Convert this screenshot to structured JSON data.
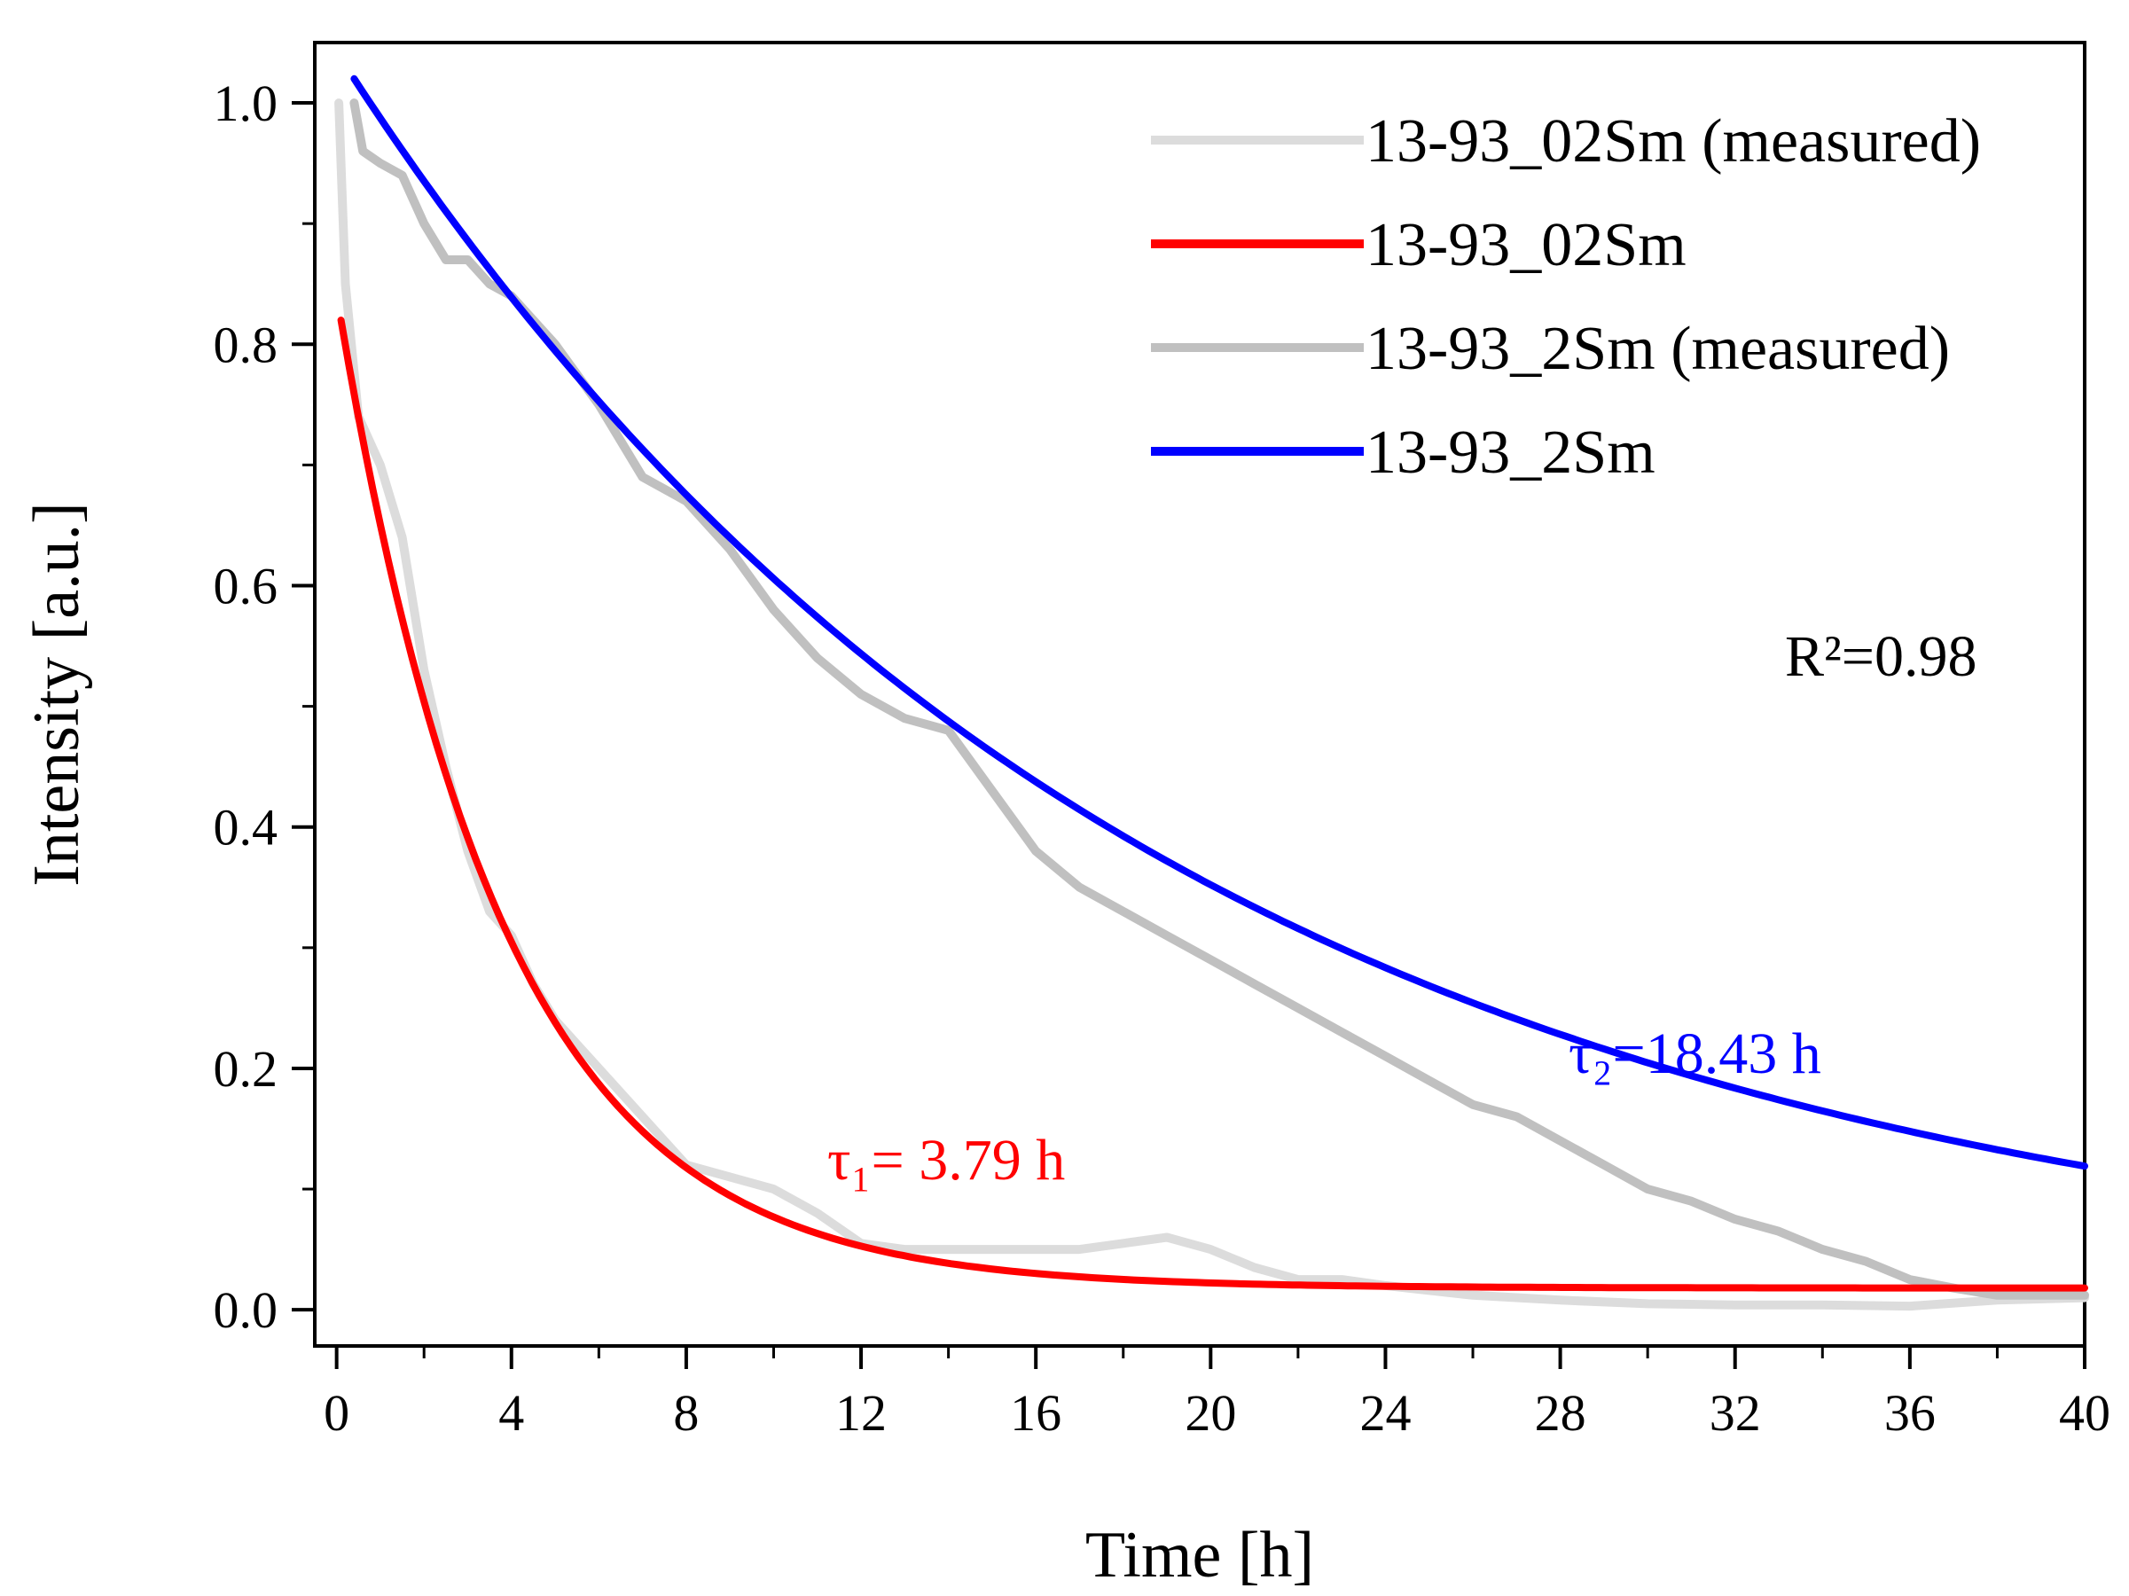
{
  "chart_data": {
    "type": "line",
    "title": "",
    "xlabel": "Time [h]",
    "ylabel": "Intensity [a.u.]",
    "xlim": [
      -0.5,
      40
    ],
    "ylim": [
      -0.03,
      1.05
    ],
    "x_ticks": [
      0,
      4,
      8,
      12,
      16,
      20,
      24,
      28,
      32,
      36,
      40
    ],
    "x_tick_labels": [
      "0",
      "4",
      "8",
      "12",
      "16",
      "20",
      "24",
      "28",
      "32",
      "36",
      "40"
    ],
    "y_ticks": [
      0.0,
      0.2,
      0.4,
      0.6,
      0.8,
      1.0
    ],
    "y_tick_labels": [
      "0.0",
      "0.2",
      "0.4",
      "0.6",
      "0.8",
      "1.0"
    ],
    "grid": false,
    "legend_position": "top-right",
    "series": [
      {
        "name": "13-93_02Sm (measured)",
        "color": "#dcdcdc",
        "kind": "measured",
        "x": [
          0.05,
          0.2,
          0.5,
          1,
          1.5,
          2,
          2.5,
          3,
          3.5,
          4,
          4.5,
          5,
          5.5,
          6,
          7,
          8,
          9,
          10,
          11,
          12,
          13,
          14,
          15,
          16,
          17,
          18,
          19,
          20,
          21,
          22,
          23,
          24,
          26,
          28,
          30,
          32,
          34,
          36,
          38,
          40
        ],
        "y": [
          1.0,
          0.85,
          0.74,
          0.7,
          0.64,
          0.53,
          0.45,
          0.38,
          0.33,
          0.31,
          0.27,
          0.24,
          0.22,
          0.2,
          0.16,
          0.12,
          0.11,
          0.1,
          0.08,
          0.055,
          0.05,
          0.05,
          0.05,
          0.05,
          0.05,
          0.055,
          0.06,
          0.05,
          0.035,
          0.025,
          0.025,
          0.02,
          0.012,
          0.008,
          0.005,
          0.004,
          0.004,
          0.003,
          0.008,
          0.01
        ]
      },
      {
        "name": "13-93_02Sm",
        "color": "#ff0000",
        "kind": "fit",
        "model": {
          "type": "exp",
          "x0": 0.1,
          "y0": 0.82,
          "offset": 0.018,
          "tau": 3.79,
          "x_start": 0.1,
          "x_end": 40
        }
      },
      {
        "name": "13-93_2Sm (measured)",
        "color": "#c0c0c0",
        "kind": "measured",
        "x": [
          0.4,
          0.6,
          1,
          1.5,
          2,
          2.5,
          3,
          3.5,
          4,
          5,
          6,
          7,
          8,
          9,
          10,
          11,
          12,
          13,
          14,
          15,
          16,
          17,
          18,
          19,
          20,
          21,
          22,
          23,
          24,
          25,
          26,
          27,
          28,
          29,
          30,
          31,
          32,
          33,
          34,
          35,
          36,
          37,
          38,
          39,
          40
        ],
        "y": [
          1.0,
          0.96,
          0.95,
          0.94,
          0.9,
          0.87,
          0.87,
          0.85,
          0.84,
          0.8,
          0.75,
          0.69,
          0.67,
          0.63,
          0.58,
          0.54,
          0.51,
          0.49,
          0.48,
          0.43,
          0.38,
          0.35,
          0.33,
          0.31,
          0.29,
          0.27,
          0.25,
          0.23,
          0.21,
          0.19,
          0.17,
          0.16,
          0.14,
          0.12,
          0.1,
          0.09,
          0.075,
          0.065,
          0.05,
          0.04,
          0.025,
          0.018,
          0.012,
          0.012,
          0.012
        ]
      },
      {
        "name": "13-93_2Sm",
        "color": "#0000ff",
        "kind": "fit",
        "model": {
          "type": "exp",
          "x0": 0.4,
          "y0": 1.02,
          "offset": 0.0,
          "tau": 18.43,
          "x_start": 0.4,
          "x_end": 40
        }
      }
    ],
    "annotations": [
      {
        "id": "r2",
        "text": "R²=0.98",
        "color": "#000000"
      },
      {
        "id": "tau1",
        "text": "τ₁= 3.79 h",
        "color": "#ff0000"
      },
      {
        "id": "tau2",
        "text": "τ₂=18.43 h",
        "color": "#0000ff"
      }
    ]
  }
}
